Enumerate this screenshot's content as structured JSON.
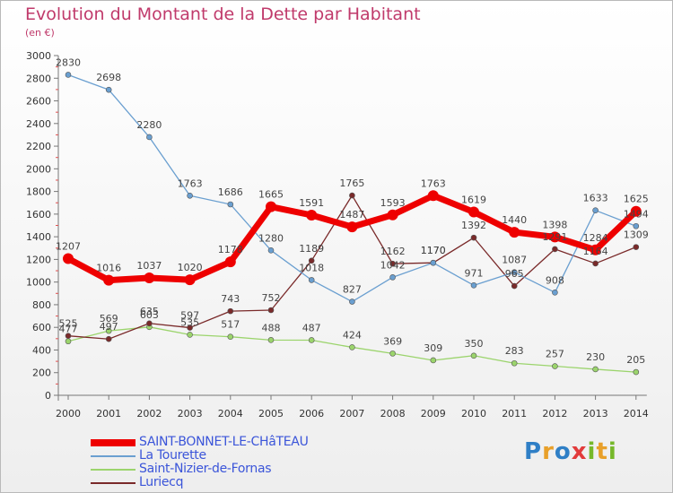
{
  "title": "Evolution du Montant de la Dette par Habitant",
  "unit": "(en €)",
  "logo_text": "Proxiti",
  "chart_data": {
    "type": "line",
    "title": "Evolution du Montant de la Dette par Habitant",
    "ylabel": "(en €)",
    "xlabel": "",
    "ylim": [
      0,
      3000
    ],
    "y_ticks": [
      0,
      200,
      400,
      600,
      800,
      1000,
      1200,
      1400,
      1600,
      1800,
      2000,
      2200,
      2400,
      2600,
      2800,
      3000
    ],
    "grid": false,
    "legend_position": "bottom-left",
    "x": [
      "2000",
      "2001",
      "2002",
      "2003",
      "2004",
      "2005",
      "2006",
      "2007",
      "2008",
      "2009",
      "2010",
      "2011",
      "2012",
      "2013",
      "2014"
    ],
    "series": [
      {
        "name": "SAINT-BONNET-LE-CHâTEAU",
        "color": "#ee0000",
        "width": 7,
        "values": [
          1207,
          1016,
          1037,
          1020,
          1178,
          1665,
          1591,
          1487,
          1593,
          1763,
          1619,
          1440,
          1398,
          1284,
          1625
        ]
      },
      {
        "name": "La Tourette",
        "color": "#6a9fd0",
        "width": 1.3,
        "values": [
          2830,
          2698,
          2280,
          1763,
          1686,
          1280,
          1018,
          827,
          1042,
          1170,
          971,
          1087,
          908,
          1633,
          1494
        ]
      },
      {
        "name": "Saint-Nizier-de-Fornas",
        "color": "#9bd46c",
        "width": 1.3,
        "values": [
          477,
          569,
          603,
          535,
          517,
          488,
          487,
          424,
          369,
          309,
          350,
          283,
          257,
          230,
          205
        ]
      },
      {
        "name": "Luriecq",
        "color": "#7a2a2a",
        "width": 1.3,
        "values": [
          525,
          497,
          635,
          597,
          743,
          752,
          1189,
          1765,
          1162,
          1170,
          1392,
          965,
          1291,
          1164,
          1309
        ]
      }
    ]
  }
}
